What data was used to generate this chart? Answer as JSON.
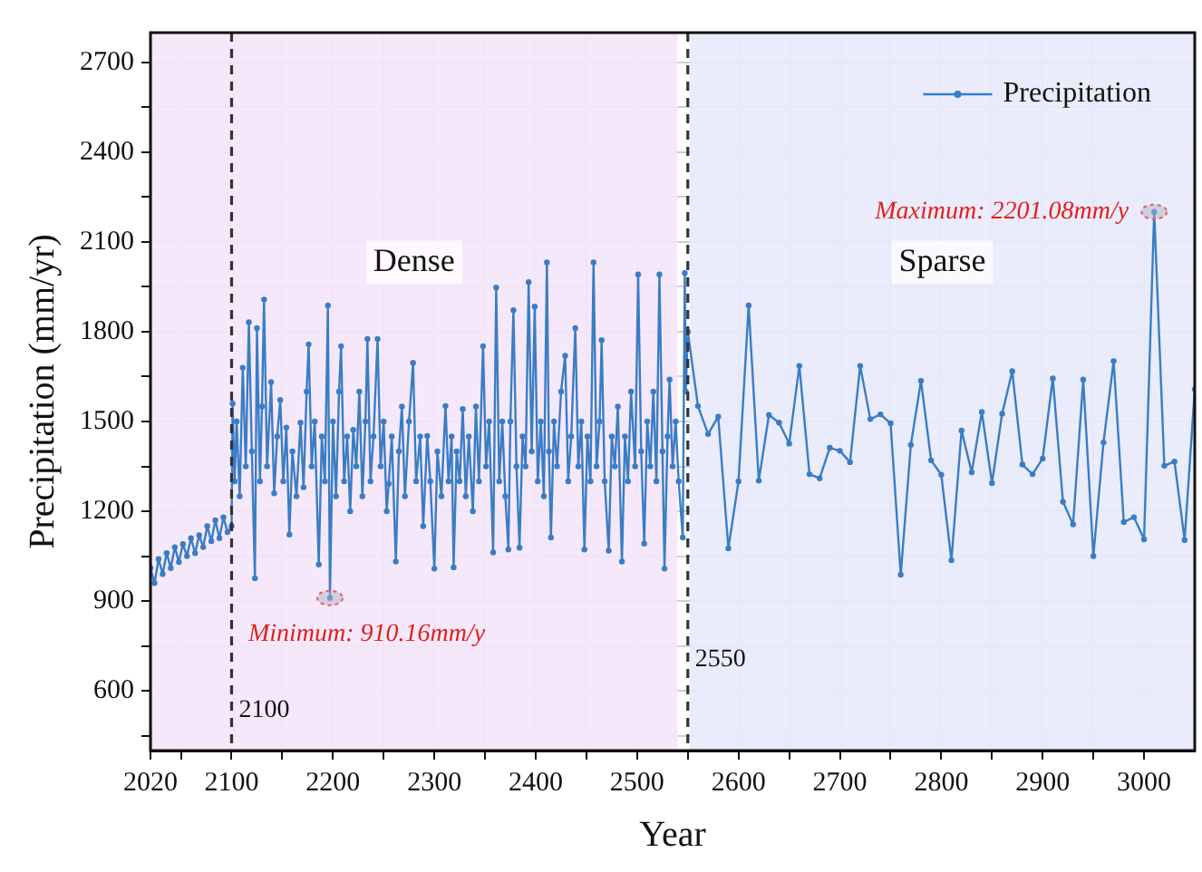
{
  "chart_data": {
    "type": "line",
    "xlabel": "Year",
    "ylabel": "Precipitation (mm/yr)",
    "xlim": [
      2020,
      3050
    ],
    "xticks": [
      2020,
      {
        "value": 2050,
        "label": null
      },
      2100,
      {
        "value": 2150,
        "label": null
      },
      2200,
      {
        "value": 2250,
        "label": null
      },
      2300,
      {
        "value": 2350,
        "label": null
      },
      2400,
      {
        "value": 2450,
        "label": null
      },
      2500,
      {
        "value": 2550,
        "label": null
      },
      2600,
      {
        "value": 2650,
        "label": null
      },
      2700,
      {
        "value": 2750,
        "label": null
      },
      2800,
      {
        "value": 2850,
        "label": null
      },
      2900,
      {
        "value": 2950,
        "label": null
      },
      3000
    ],
    "ylim": [
      400,
      2800
    ],
    "yticks": [
      {
        "value": 450,
        "label": null
      },
      600,
      {
        "value": 750,
        "label": null
      },
      900,
      {
        "value": 1050,
        "label": null
      },
      1200,
      {
        "value": 1350,
        "label": null
      },
      1500,
      {
        "value": 1650,
        "label": null
      },
      1800,
      {
        "value": 1950,
        "label": null
      },
      2100,
      {
        "value": 2250,
        "label": null
      },
      2400,
      {
        "value": 2550,
        "label": null
      },
      2700
    ],
    "grid": true,
    "legend": "top right",
    "marker": "circle",
    "line_style": "solid",
    "bands": [
      {
        "axis": "x",
        "from": 2020,
        "to": 2540,
        "label": "Dense",
        "color": "#f5e6fb"
      },
      {
        "axis": "x",
        "from": 2552,
        "to": 3050,
        "label": "Sparse",
        "color": "#e8e9fb"
      }
    ],
    "ref_lines": [
      {
        "axis": "x",
        "value": 2100,
        "label": "2100",
        "line_style": "dashed",
        "color": "#333333"
      },
      {
        "axis": "x",
        "value": 2550,
        "label": "2550",
        "line_style": "dashed",
        "color": "#333333"
      }
    ],
    "annotations": [
      {
        "text": "Minimum: 910.16mm/y",
        "x": 2197,
        "y": 910.16
      },
      {
        "text": "Maximum: 2201.08mm/y",
        "x": 3010,
        "y": 2201.08
      }
    ],
    "series": [
      {
        "name": "Precipitation",
        "color": "#3a7dc4",
        "x": [
          2020,
          2024,
          2028,
          2032,
          2036,
          2040,
          2044,
          2048,
          2052,
          2056,
          2060,
          2064,
          2068,
          2072,
          2076,
          2080,
          2084,
          2088,
          2092,
          2096,
          2100,
          2101,
          2103,
          2105,
          2108,
          2111,
          2114,
          2117,
          2120,
          2123,
          2125,
          2128,
          2130,
          2132,
          2135,
          2139,
          2142,
          2145,
          2148,
          2151,
          2154,
          2157,
          2160,
          2164,
          2168,
          2171,
          2174,
          2176,
          2179,
          2182,
          2186,
          2189,
          2192,
          2195,
          2197,
          2200,
          2203,
          2206,
          2208,
          2211,
          2214,
          2217,
          2220,
          2223,
          2226,
          2229,
          2232,
          2234,
          2237,
          2240,
          2244,
          2247,
          2250,
          2253,
          2255,
          2258,
          2262,
          2265,
          2268,
          2271,
          2275,
          2279,
          2282,
          2286,
          2289,
          2293,
          2296,
          2300,
          2303,
          2307,
          2311,
          2314,
          2317,
          2319,
          2322,
          2325,
          2328,
          2331,
          2334,
          2338,
          2341,
          2344,
          2348,
          2351,
          2354,
          2358,
          2361,
          2364,
          2367,
          2370,
          2373,
          2375,
          2378,
          2381,
          2384,
          2387,
          2390,
          2393,
          2396,
          2399,
          2402,
          2405,
          2408,
          2411,
          2413,
          2415,
          2418,
          2421,
          2425,
          2429,
          2432,
          2435,
          2439,
          2442,
          2445,
          2448,
          2451,
          2454,
          2457,
          2460,
          2463,
          2465,
          2468,
          2472,
          2475,
          2478,
          2481,
          2485,
          2488,
          2491,
          2494,
          2498,
          2501,
          2504,
          2507,
          2510,
          2513,
          2516,
          2519,
          2522,
          2525,
          2527,
          2530,
          2532,
          2535,
          2538,
          2541,
          2545,
          2547,
          2548,
          2550,
          2560,
          2570,
          2580,
          2590,
          2600,
          2610,
          2620,
          2630,
          2640,
          2650,
          2660,
          2670,
          2680,
          2690,
          2700,
          2710,
          2720,
          2730,
          2740,
          2750,
          2760,
          2770,
          2780,
          2790,
          2800,
          2810,
          2820,
          2830,
          2840,
          2850,
          2860,
          2870,
          2880,
          2890,
          2900,
          2910,
          2920,
          2930,
          2940,
          2950,
          2960,
          2970,
          2980,
          2990,
          3000,
          3010,
          3020,
          3030,
          3040,
          3050
        ],
        "values": [
          1010,
          960,
          1040,
          990,
          1060,
          1010,
          1080,
          1030,
          1090,
          1050,
          1110,
          1060,
          1120,
          1080,
          1150,
          1100,
          1170,
          1110,
          1180,
          1130,
          1150,
          1560,
          1300,
          1500,
          1250,
          1680,
          1350,
          1832,
          1400,
          976,
          1812,
          1300,
          1550,
          1908,
          1350,
          1632,
          1260,
          1450,
          1572,
          1300,
          1480,
          1122,
          1400,
          1250,
          1496,
          1280,
          1600,
          1758,
          1350,
          1500,
          1022,
          1450,
          1300,
          1888,
          910.16,
          1500,
          1250,
          1600,
          1752,
          1300,
          1450,
          1200,
          1472,
          1350,
          1600,
          1250,
          1500,
          1776,
          1300,
          1450,
          1776,
          1350,
          1500,
          1200,
          1292,
          1450,
          1032,
          1400,
          1550,
          1250,
          1500,
          1696,
          1300,
          1450,
          1150,
          1452,
          1300,
          1008,
          1400,
          1250,
          1552,
          1300,
          1450,
          1012,
          1400,
          1300,
          1542,
          1250,
          1450,
          1200,
          1550,
          1300,
          1752,
          1350,
          1500,
          1062,
          1948,
          1300,
          1500,
          1250,
          1072,
          1500,
          1872,
          1350,
          1078,
          1450,
          1350,
          1966,
          1400,
          1884,
          1300,
          1500,
          1250,
          2032,
          1400,
          1112,
          1500,
          1350,
          1600,
          1720,
          1300,
          1450,
          1812,
          1350,
          1500,
          1072,
          1450,
          1300,
          2032,
          1350,
          1500,
          1772,
          1300,
          1068,
          1450,
          1350,
          1550,
          1032,
          1450,
          1300,
          1600,
          1350,
          1992,
          1400,
          1092,
          1500,
          1350,
          1600,
          1300,
          1992,
          1400,
          1008,
          1450,
          1640,
          1350,
          1500,
          1300,
          1112,
          1996,
          1600,
          1800,
          1552,
          1458,
          1516,
          1076,
          1300,
          1888,
          1302,
          1522,
          1496,
          1426,
          1686,
          1324,
          1310,
          1412,
          1402,
          1364,
          1686,
          1508,
          1524,
          1494,
          988,
          1422,
          1636,
          1370,
          1322,
          1036,
          1470,
          1330,
          1532,
          1294,
          1526,
          1668,
          1356,
          1324,
          1376,
          1644,
          1232,
          1156,
          1640,
          1050,
          1430,
          1702,
          1164,
          1180,
          1106,
          2201.08,
          1352,
          1366,
          1104,
          1608
        ]
      }
    ]
  }
}
